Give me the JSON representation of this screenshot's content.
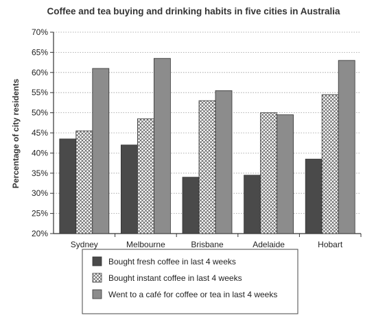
{
  "chart_data": {
    "type": "bar",
    "title": "Coffee and tea buying and drinking habits in five cities in Australia",
    "ylabel": "Percentage of city residents",
    "xlabel": "",
    "categories": [
      "Sydney",
      "Melbourne",
      "Brisbane",
      "Adelaide",
      "Hobart"
    ],
    "series": [
      {
        "name": "Bought fresh coffee in last 4 weeks",
        "values": [
          43.5,
          42.0,
          34.0,
          34.5,
          38.5
        ],
        "color": "#4a4a4a",
        "pattern": "solid"
      },
      {
        "name": "Bought instant coffee in last 4 weeks",
        "values": [
          45.5,
          48.5,
          53.0,
          50.0,
          54.5
        ],
        "color": "#ffffff",
        "pattern": "crosshatch"
      },
      {
        "name": "Went to a café for coffee or tea in last 4 weeks",
        "values": [
          61.0,
          63.5,
          55.5,
          49.5,
          63.0
        ],
        "color": "#8c8c8c",
        "pattern": "solid"
      }
    ],
    "ylim": [
      20,
      70
    ],
    "yticks": [
      20,
      25,
      30,
      35,
      40,
      45,
      50,
      55,
      60,
      65,
      70
    ],
    "ytick_labels": [
      "20%",
      "25%",
      "30%",
      "35%",
      "40%",
      "45%",
      "50%",
      "55%",
      "60%",
      "65%",
      "70%"
    ],
    "grid": "horizontal-dotted",
    "legend": "bottom"
  }
}
